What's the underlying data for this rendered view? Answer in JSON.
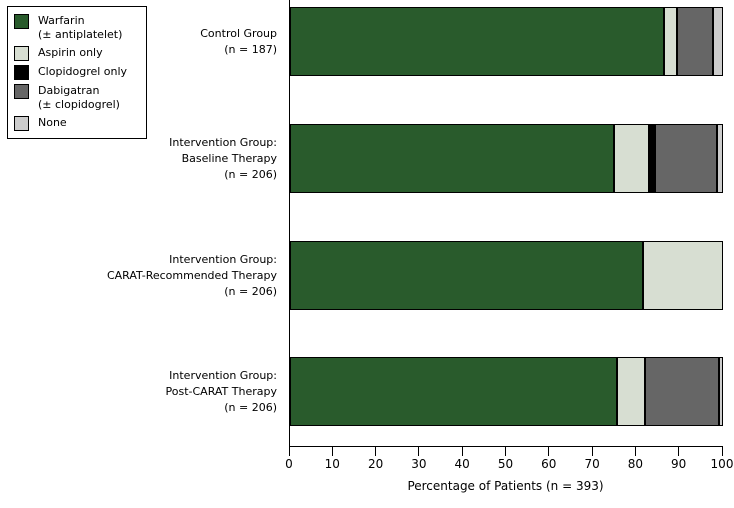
{
  "chart_data": {
    "type": "bar",
    "orientation": "horizontal",
    "stacked": true,
    "title": "",
    "xlabel": "Percentage of Patients (n = 393)",
    "xlim": [
      0,
      100
    ],
    "xticks": [
      0,
      10,
      20,
      30,
      40,
      50,
      60,
      70,
      80,
      90,
      100
    ],
    "grid": false,
    "legend_position": "top-left",
    "categories": [
      {
        "label_lines": [
          "Control Group",
          "(n = 187)"
        ]
      },
      {
        "label_lines": [
          "Intervention Group:",
          "Baseline Therapy",
          "(n = 206)"
        ]
      },
      {
        "label_lines": [
          "Intervention Group:",
          "CARAT-Recommended Therapy",
          "(n = 206)"
        ]
      },
      {
        "label_lines": [
          "Intervention Group:",
          "Post-CARAT Therapy",
          "(n = 206)"
        ]
      }
    ],
    "series": [
      {
        "name": "Warfarin (± antiplatelet)",
        "color": "#295b2c",
        "values": [
          86.3,
          74.8,
          81.6,
          75.6
        ]
      },
      {
        "name": "Aspirin only",
        "color": "#d7ded2",
        "values": [
          3.0,
          8.0,
          18.4,
          6.5
        ]
      },
      {
        "name": "Clopidogrel only",
        "color": "#000000",
        "values": [
          0,
          1.6,
          0,
          0
        ]
      },
      {
        "name": "Dabigatran (± clopidogrel)",
        "color": "#666666",
        "values": [
          8.4,
          14.3,
          0,
          16.9
        ]
      },
      {
        "name": "None",
        "color": "#cccccc",
        "values": [
          2.3,
          1.3,
          0,
          1.0
        ]
      }
    ],
    "legend": {
      "entries": [
        {
          "label_lines": [
            "Warfarin",
            "(± antiplatelet)"
          ],
          "color": "#295b2c"
        },
        {
          "label_lines": [
            "Aspirin only"
          ],
          "color": "#d7ded2"
        },
        {
          "label_lines": [
            "Clopidogrel only"
          ],
          "color": "#000000"
        },
        {
          "label_lines": [
            "Dabigatran",
            "(± clopidogrel)"
          ],
          "color": "#666666"
        },
        {
          "label_lines": [
            "None"
          ],
          "color": "#cccccc"
        }
      ]
    }
  }
}
